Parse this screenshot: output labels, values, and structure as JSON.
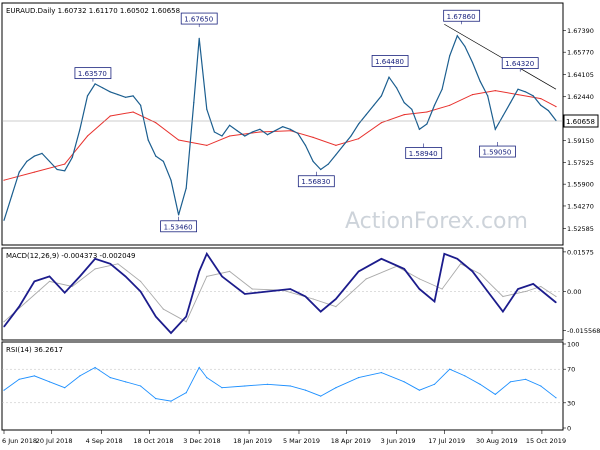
{
  "chart_data": [
    {
      "type": "candlestick",
      "title": "EURAUD.Daily  1.60732 1.61170 1.60502 1.60658",
      "watermark": "ActionForex.com",
      "ylim": [
        1.515,
        1.693
      ],
      "yticks": [
        "1.67390",
        "1.65770",
        "1.64105",
        "1.62440",
        "1.60658",
        "1.59150",
        "1.57525",
        "1.55900",
        "1.54270",
        "1.52585"
      ],
      "last_price": "1.60658",
      "x_tick_labels": [
        "6 Jun 2018",
        "20 Jul 2018",
        "4 Sep 2018",
        "18 Oct 2018",
        "3 Dec 2018",
        "18 Jan 2019",
        "5 Mar 2019",
        "18 Apr 2019",
        "3 Jun 2019",
        "17 Jul 2019",
        "30 Aug 2019",
        "15 Oct 2019"
      ],
      "annotations": [
        {
          "label": "1.63570",
          "x": "2018-08-27",
          "y": 1.6357
        },
        {
          "label": "1.53460",
          "x": "2018-11-14",
          "y": 1.5346
        },
        {
          "label": "1.67650",
          "x": "2018-12-03",
          "y": 1.6765
        },
        {
          "label": "1.56830",
          "x": "2019-03-21",
          "y": 1.5683
        },
        {
          "label": "1.64480",
          "x": "2019-05-28",
          "y": 1.6448
        },
        {
          "label": "1.58940",
          "x": "2019-06-28",
          "y": 1.5894
        },
        {
          "label": "1.67860",
          "x": "2019-08-02",
          "y": 1.6786
        },
        {
          "label": "1.59050",
          "x": "2019-09-04",
          "y": 1.5905
        },
        {
          "label": "1.64320",
          "x": "2019-09-25",
          "y": 1.6432
        }
      ],
      "series": [
        {
          "name": "EURAUD close",
          "color": "#1b5e8f",
          "points": [
            [
              "2018-06-06",
              1.532
            ],
            [
              "2018-06-13",
              1.55
            ],
            [
              "2018-06-20",
              1.568
            ],
            [
              "2018-06-27",
              1.576
            ],
            [
              "2018-07-04",
              1.58
            ],
            [
              "2018-07-11",
              1.582
            ],
            [
              "2018-07-18",
              1.576
            ],
            [
              "2018-07-25",
              1.57
            ],
            [
              "2018-08-01",
              1.569
            ],
            [
              "2018-08-08",
              1.579
            ],
            [
              "2018-08-15",
              1.6
            ],
            [
              "2018-08-22",
              1.625
            ],
            [
              "2018-08-29",
              1.634
            ],
            [
              "2018-09-05",
              1.631
            ],
            [
              "2018-09-12",
              1.628
            ],
            [
              "2018-09-19",
              1.626
            ],
            [
              "2018-09-26",
              1.624
            ],
            [
              "2018-10-03",
              1.625
            ],
            [
              "2018-10-10",
              1.618
            ],
            [
              "2018-10-17",
              1.592
            ],
            [
              "2018-10-24",
              1.58
            ],
            [
              "2018-10-31",
              1.576
            ],
            [
              "2018-11-07",
              1.562
            ],
            [
              "2018-11-14",
              1.536
            ],
            [
              "2018-11-21",
              1.556
            ],
            [
              "2018-11-28",
              1.62
            ],
            [
              "2018-12-03",
              1.668
            ],
            [
              "2018-12-10",
              1.615
            ],
            [
              "2018-12-17",
              1.598
            ],
            [
              "2018-12-24",
              1.595
            ],
            [
              "2018-12-31",
              1.603
            ],
            [
              "2019-01-07",
              1.599
            ],
            [
              "2019-01-14",
              1.595
            ],
            [
              "2019-01-21",
              1.598
            ],
            [
              "2019-01-28",
              1.6
            ],
            [
              "2019-02-04",
              1.596
            ],
            [
              "2019-02-11",
              1.599
            ],
            [
              "2019-02-18",
              1.602
            ],
            [
              "2019-02-25",
              1.6
            ],
            [
              "2019-03-04",
              1.597
            ],
            [
              "2019-03-11",
              1.588
            ],
            [
              "2019-03-18",
              1.576
            ],
            [
              "2019-03-25",
              1.57
            ],
            [
              "2019-04-01",
              1.574
            ],
            [
              "2019-04-08",
              1.581
            ],
            [
              "2019-04-15",
              1.588
            ],
            [
              "2019-04-22",
              1.595
            ],
            [
              "2019-04-29",
              1.604
            ],
            [
              "2019-05-06",
              1.611
            ],
            [
              "2019-05-13",
              1.618
            ],
            [
              "2019-05-20",
              1.625
            ],
            [
              "2019-05-27",
              1.639
            ],
            [
              "2019-06-03",
              1.631
            ],
            [
              "2019-06-10",
              1.62
            ],
            [
              "2019-06-17",
              1.615
            ],
            [
              "2019-06-24",
              1.6
            ],
            [
              "2019-07-01",
              1.604
            ],
            [
              "2019-07-08",
              1.618
            ],
            [
              "2019-07-15",
              1.63
            ],
            [
              "2019-07-22",
              1.655
            ],
            [
              "2019-07-29",
              1.67
            ],
            [
              "2019-08-05",
              1.662
            ],
            [
              "2019-08-12",
              1.65
            ],
            [
              "2019-08-19",
              1.636
            ],
            [
              "2019-08-26",
              1.625
            ],
            [
              "2019-09-02",
              1.6
            ],
            [
              "2019-09-09",
              1.61
            ],
            [
              "2019-09-16",
              1.62
            ],
            [
              "2019-09-23",
              1.63
            ],
            [
              "2019-09-30",
              1.628
            ],
            [
              "2019-10-07",
              1.625
            ],
            [
              "2019-10-14",
              1.618
            ],
            [
              "2019-10-21",
              1.614
            ],
            [
              "2019-10-28",
              1.6066
            ]
          ]
        },
        {
          "name": "Moving average",
          "color": "#e8322e",
          "points": [
            [
              "2018-06-06",
              1.562
            ],
            [
              "2018-07-04",
              1.568
            ],
            [
              "2018-08-01",
              1.574
            ],
            [
              "2018-08-22",
              1.595
            ],
            [
              "2018-09-12",
              1.61
            ],
            [
              "2018-10-03",
              1.613
            ],
            [
              "2018-10-24",
              1.605
            ],
            [
              "2018-11-14",
              1.592
            ],
            [
              "2018-12-10",
              1.588
            ],
            [
              "2018-12-31",
              1.595
            ],
            [
              "2019-01-28",
              1.598
            ],
            [
              "2019-02-25",
              1.599
            ],
            [
              "2019-03-18",
              1.594
            ],
            [
              "2019-04-08",
              1.588
            ],
            [
              "2019-04-29",
              1.593
            ],
            [
              "2019-05-20",
              1.605
            ],
            [
              "2019-06-10",
              1.611
            ],
            [
              "2019-07-01",
              1.613
            ],
            [
              "2019-07-22",
              1.618
            ],
            [
              "2019-08-12",
              1.626
            ],
            [
              "2019-09-02",
              1.629
            ],
            [
              "2019-09-23",
              1.626
            ],
            [
              "2019-10-14",
              1.623
            ],
            [
              "2019-10-28",
              1.617
            ]
          ]
        }
      ],
      "trendline": {
        "from": [
          "2019-07-17",
          1.6786
        ],
        "to": [
          "2019-10-28",
          1.63
        ]
      }
    },
    {
      "type": "line",
      "title": "MACD(12,26,9) -0.004373 -0.002049",
      "ylim": [
        -0.0185,
        0.0165
      ],
      "yticks": [
        "0.01575",
        "0.00",
        "-0.015568"
      ],
      "series": [
        {
          "name": "MACD",
          "color": "#1c1c8c",
          "points": [
            [
              "2018-06-06",
              -0.014
            ],
            [
              "2018-06-20",
              -0.006
            ],
            [
              "2018-07-04",
              0.004
            ],
            [
              "2018-07-18",
              0.006
            ],
            [
              "2018-08-01",
              -0.0005
            ],
            [
              "2018-08-15",
              0.006
            ],
            [
              "2018-08-29",
              0.013
            ],
            [
              "2018-09-12",
              0.011
            ],
            [
              "2018-09-26",
              0.006
            ],
            [
              "2018-10-10",
              0.0
            ],
            [
              "2018-10-24",
              -0.01
            ],
            [
              "2018-11-07",
              -0.0165
            ],
            [
              "2018-11-21",
              -0.01
            ],
            [
              "2018-12-03",
              0.008
            ],
            [
              "2018-12-10",
              0.015
            ],
            [
              "2018-12-24",
              0.006
            ],
            [
              "2019-01-14",
              -0.001
            ],
            [
              "2019-02-04",
              0.0
            ],
            [
              "2019-02-25",
              0.001
            ],
            [
              "2019-03-11",
              -0.002
            ],
            [
              "2019-03-25",
              -0.008
            ],
            [
              "2019-04-08",
              -0.003
            ],
            [
              "2019-04-29",
              0.008
            ],
            [
              "2019-05-20",
              0.013
            ],
            [
              "2019-06-10",
              0.009
            ],
            [
              "2019-06-24",
              0.001
            ],
            [
              "2019-07-08",
              -0.004
            ],
            [
              "2019-07-17",
              0.015
            ],
            [
              "2019-07-29",
              0.013
            ],
            [
              "2019-08-12",
              0.008
            ],
            [
              "2019-08-26",
              0.0
            ],
            [
              "2019-09-09",
              -0.008
            ],
            [
              "2019-09-23",
              0.001
            ],
            [
              "2019-10-07",
              0.003
            ],
            [
              "2019-10-28",
              -0.0044
            ]
          ]
        },
        {
          "name": "Signal",
          "color": "#aaaaaa",
          "points": [
            [
              "2018-06-06",
              -0.012
            ],
            [
              "2018-06-27",
              -0.004
            ],
            [
              "2018-07-18",
              0.004
            ],
            [
              "2018-08-08",
              0.002
            ],
            [
              "2018-08-29",
              0.009
            ],
            [
              "2018-09-19",
              0.011
            ],
            [
              "2018-10-10",
              0.004
            ],
            [
              "2018-10-31",
              -0.007
            ],
            [
              "2018-11-21",
              -0.012
            ],
            [
              "2018-12-10",
              0.006
            ],
            [
              "2018-12-31",
              0.008
            ],
            [
              "2019-01-21",
              0.001
            ],
            [
              "2019-02-18",
              0.0005
            ],
            [
              "2019-03-18",
              -0.003
            ],
            [
              "2019-04-08",
              -0.006
            ],
            [
              "2019-05-06",
              0.005
            ],
            [
              "2019-06-03",
              0.01
            ],
            [
              "2019-06-24",
              0.005
            ],
            [
              "2019-07-15",
              0.001
            ],
            [
              "2019-08-01",
              0.011
            ],
            [
              "2019-08-19",
              0.007
            ],
            [
              "2019-09-09",
              -0.002
            ],
            [
              "2019-09-30",
              0.0
            ],
            [
              "2019-10-14",
              0.002
            ],
            [
              "2019-10-28",
              -0.002
            ]
          ]
        }
      ]
    },
    {
      "type": "line",
      "title": "RSI(14) 36.2617",
      "ylim": [
        0,
        100
      ],
      "yticks": [
        "100",
        "70",
        "30",
        "0"
      ],
      "series": [
        {
          "name": "RSI",
          "color": "#1e90ff",
          "points": [
            [
              "2018-06-06",
              45
            ],
            [
              "2018-06-20",
              58
            ],
            [
              "2018-07-04",
              62
            ],
            [
              "2018-07-18",
              55
            ],
            [
              "2018-08-01",
              48
            ],
            [
              "2018-08-15",
              62
            ],
            [
              "2018-08-29",
              72
            ],
            [
              "2018-09-12",
              60
            ],
            [
              "2018-09-26",
              55
            ],
            [
              "2018-10-10",
              50
            ],
            [
              "2018-10-24",
              35
            ],
            [
              "2018-11-07",
              32
            ],
            [
              "2018-11-21",
              42
            ],
            [
              "2018-12-03",
              72
            ],
            [
              "2018-12-10",
              60
            ],
            [
              "2018-12-24",
              48
            ],
            [
              "2019-01-14",
              50
            ],
            [
              "2019-02-04",
              52
            ],
            [
              "2019-02-25",
              50
            ],
            [
              "2019-03-11",
              45
            ],
            [
              "2019-03-25",
              38
            ],
            [
              "2019-04-08",
              48
            ],
            [
              "2019-04-29",
              60
            ],
            [
              "2019-05-20",
              66
            ],
            [
              "2019-06-10",
              55
            ],
            [
              "2019-06-24",
              45
            ],
            [
              "2019-07-08",
              52
            ],
            [
              "2019-07-22",
              70
            ],
            [
              "2019-08-05",
              62
            ],
            [
              "2019-08-19",
              52
            ],
            [
              "2019-09-02",
              40
            ],
            [
              "2019-09-16",
              55
            ],
            [
              "2019-09-30",
              58
            ],
            [
              "2019-10-14",
              50
            ],
            [
              "2019-10-28",
              36
            ]
          ]
        }
      ]
    }
  ]
}
